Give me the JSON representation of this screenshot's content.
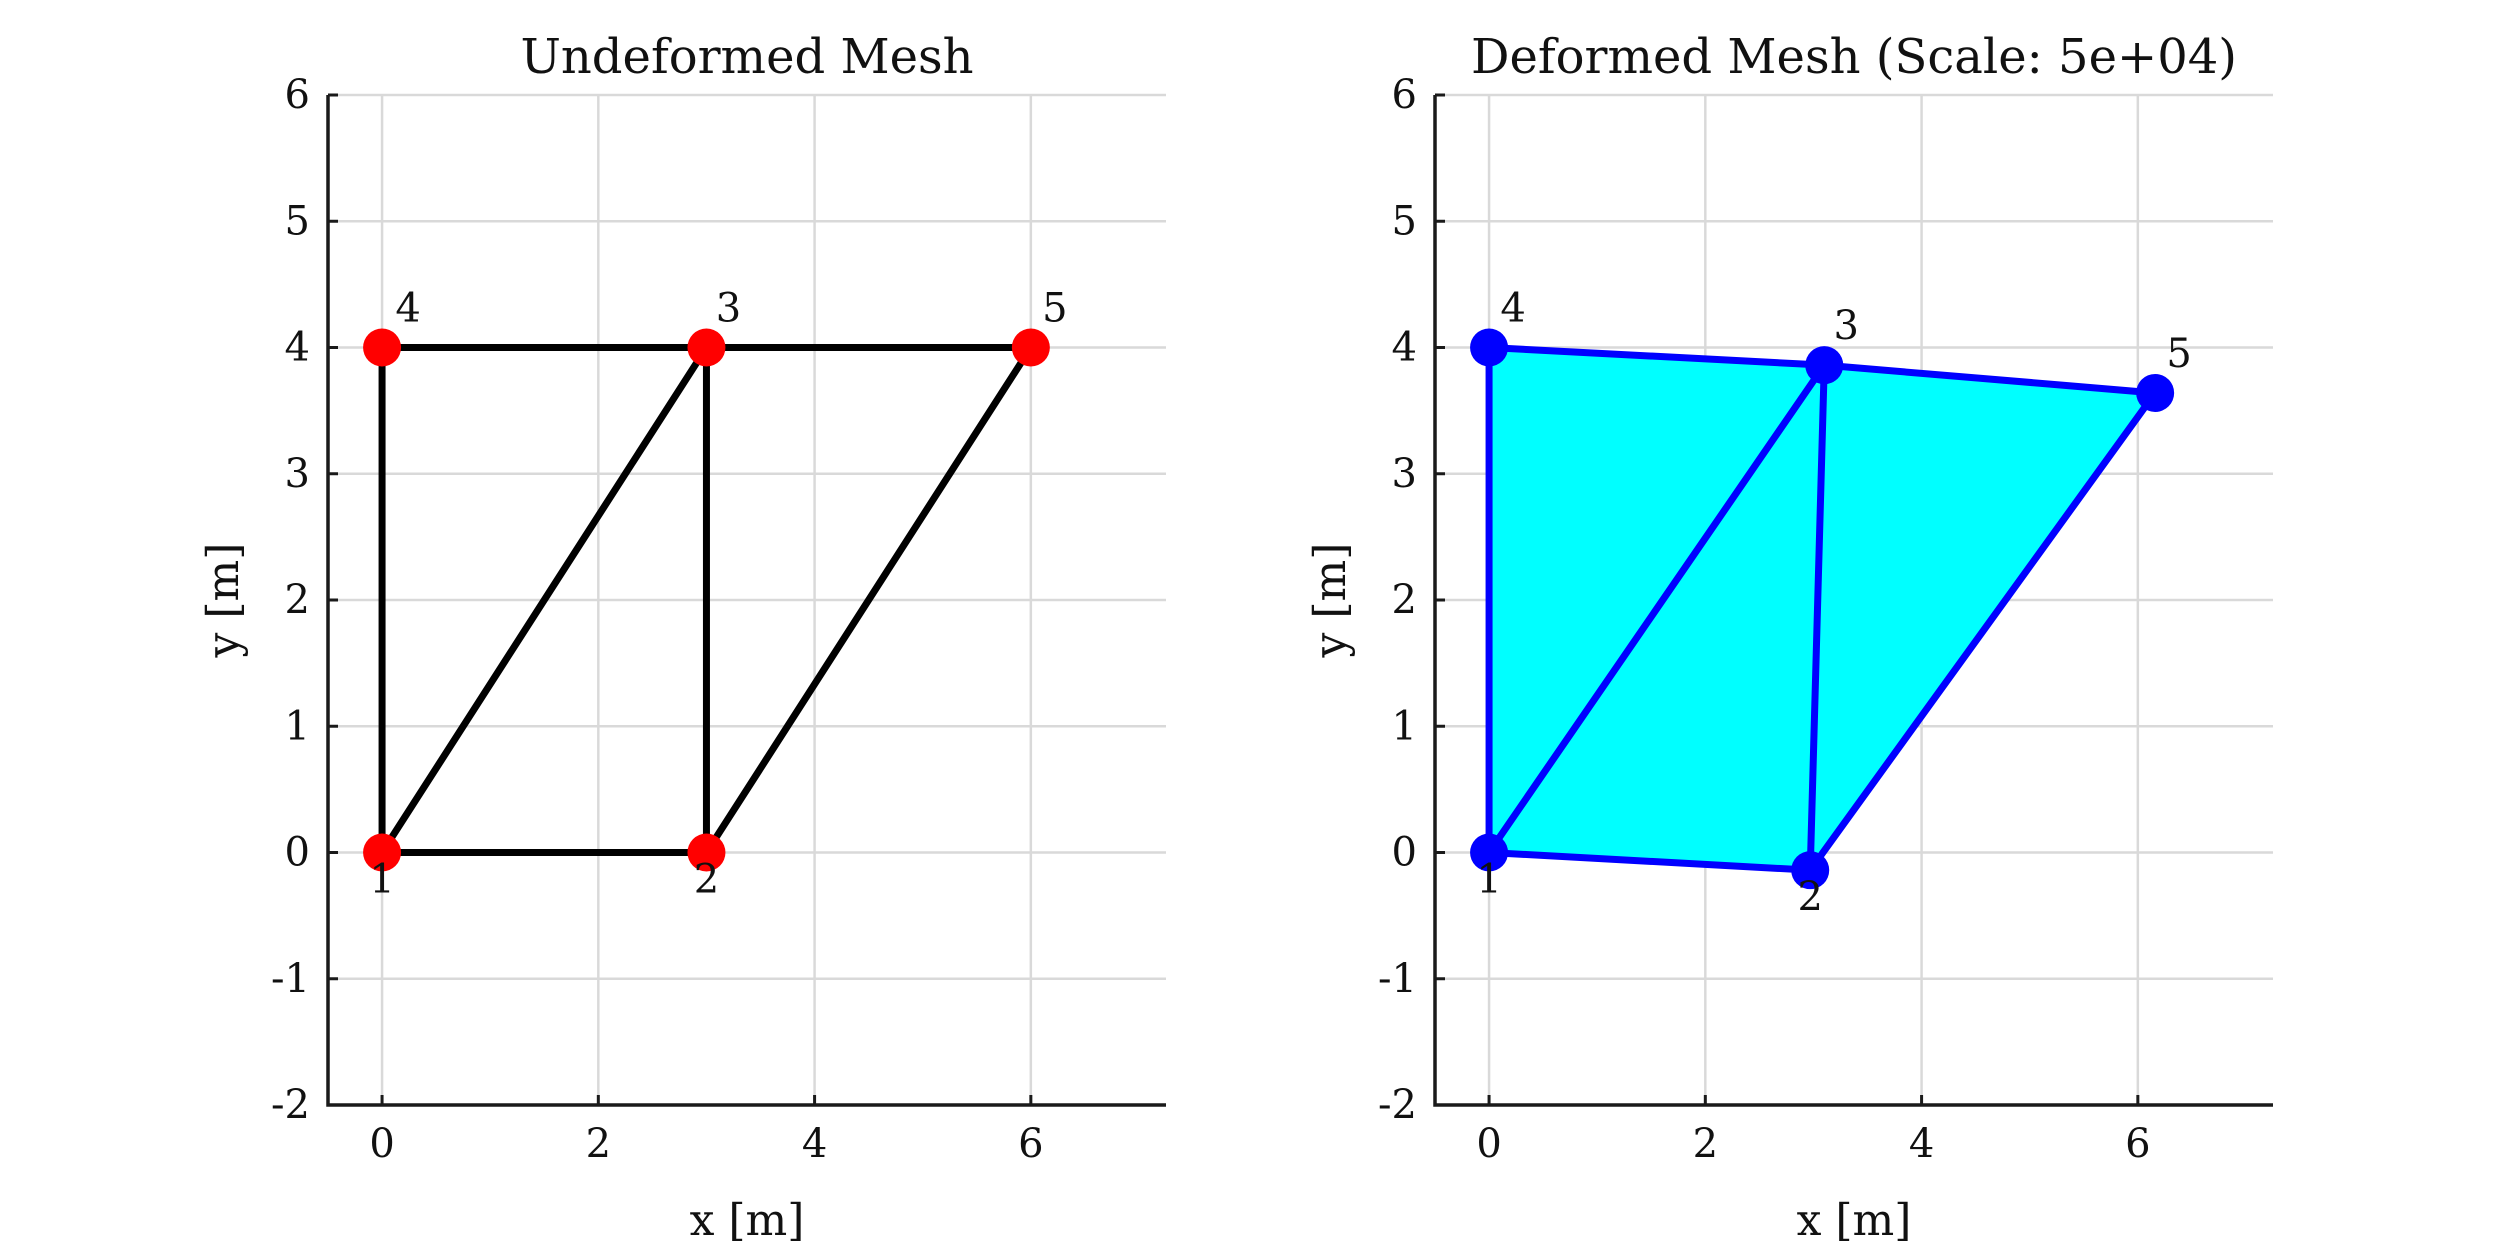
{
  "chart_data": [
    {
      "type": "mesh",
      "title": "Undeformed Mesh",
      "xlabel": "x [m]",
      "ylabel": "y [m]",
      "xlim": [
        -0.5,
        7.25
      ],
      "ylim": [
        -2,
        6
      ],
      "xticks": [
        0,
        2,
        4,
        6
      ],
      "yticks": [
        -2,
        -1,
        0,
        1,
        2,
        3,
        4,
        5,
        6
      ],
      "xtick_labels": [
        "0",
        "2",
        "4",
        "6"
      ],
      "ytick_labels": [
        "-2",
        "-1",
        "0",
        "1",
        "2",
        "3",
        "4",
        "5",
        "6"
      ],
      "grid": true,
      "filled": false,
      "edge_color": "#000000",
      "fill_color": null,
      "node_color": "#ff0000",
      "nodes": [
        {
          "id": "1",
          "x": 0,
          "y": 0
        },
        {
          "id": "2",
          "x": 3,
          "y": 0
        },
        {
          "id": "3",
          "x": 3,
          "y": 4
        },
        {
          "id": "4",
          "x": 0,
          "y": 4
        },
        {
          "id": "5",
          "x": 6,
          "y": 4
        }
      ],
      "elements": [
        [
          "1",
          "2",
          "3"
        ],
        [
          "1",
          "3",
          "4"
        ],
        [
          "2",
          "5",
          "3"
        ]
      ],
      "edges": [
        [
          "1",
          "2"
        ],
        [
          "2",
          "3"
        ],
        [
          "3",
          "1"
        ],
        [
          "3",
          "4"
        ],
        [
          "4",
          "1"
        ],
        [
          "2",
          "5"
        ],
        [
          "5",
          "3"
        ]
      ]
    },
    {
      "type": "mesh",
      "title": "Deformed Mesh (Scale: 5e+04)",
      "xlabel": "x [m]",
      "ylabel": "y [m]",
      "xlim": [
        -0.5,
        7.25
      ],
      "ylim": [
        -2,
        6
      ],
      "xticks": [
        0,
        2,
        4,
        6
      ],
      "yticks": [
        -2,
        -1,
        0,
        1,
        2,
        3,
        4,
        5,
        6
      ],
      "xtick_labels": [
        "0",
        "2",
        "4",
        "6"
      ],
      "ytick_labels": [
        "-2",
        "-1",
        "0",
        "1",
        "2",
        "3",
        "4",
        "5",
        "6"
      ],
      "grid": true,
      "filled": true,
      "edge_color": "#0000ff",
      "fill_color": "#00ffff",
      "node_color": "#0000ff",
      "nodes": [
        {
          "id": "1",
          "x": 0,
          "y": 0
        },
        {
          "id": "2",
          "x": 2.97,
          "y": -0.14
        },
        {
          "id": "3",
          "x": 3.1,
          "y": 3.86
        },
        {
          "id": "4",
          "x": 0,
          "y": 4
        },
        {
          "id": "5",
          "x": 6.16,
          "y": 3.64
        }
      ],
      "elements": [
        [
          "1",
          "2",
          "3"
        ],
        [
          "1",
          "3",
          "4"
        ],
        [
          "2",
          "5",
          "3"
        ]
      ],
      "edges": [
        [
          "1",
          "2"
        ],
        [
          "2",
          "3"
        ],
        [
          "3",
          "1"
        ],
        [
          "3",
          "4"
        ],
        [
          "4",
          "1"
        ],
        [
          "2",
          "5"
        ],
        [
          "5",
          "3"
        ]
      ]
    }
  ]
}
